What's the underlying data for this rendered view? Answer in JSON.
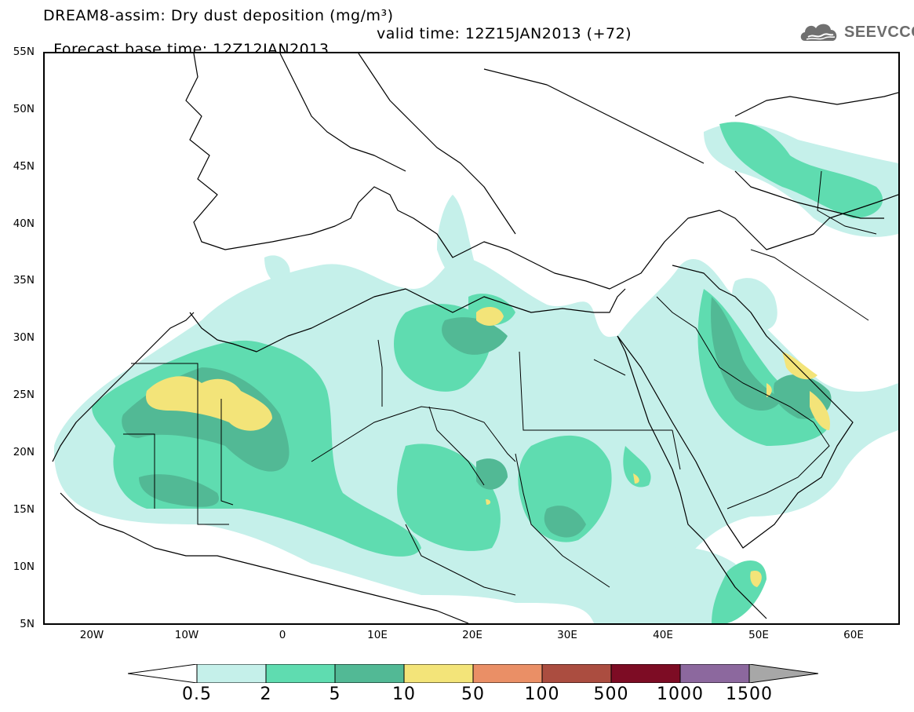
{
  "title_line1": "DREAM8-assim: Dry dust deposition (mg/m³)",
  "title_base": "Forecast base time: 12Z12JAN2013",
  "title_valid": "valid time: 12Z15JAN2013 (+72)",
  "logo_text": "SEEVCCC",
  "lat_labels": [
    "55N",
    "50N",
    "45N",
    "40N",
    "35N",
    "30N",
    "25N",
    "20N",
    "15N",
    "10N",
    "5N"
  ],
  "lon_labels": [
    "20W",
    "10W",
    "0",
    "10E",
    "20E",
    "30E",
    "40E",
    "50E",
    "60E"
  ],
  "colorbar": {
    "labels": [
      "0.5",
      "2",
      "5",
      "10",
      "50",
      "100",
      "500",
      "1000",
      "1500"
    ],
    "colors": [
      "#c5f0ea",
      "#5fdcb0",
      "#52b995",
      "#f3e479",
      "#ea8f66",
      "#ab4d40",
      "#7d0c24",
      "#8c689e"
    ],
    "under_color": "#ffffff",
    "over_color": "#a7a7a7"
  },
  "map": {
    "projection": "lat-lon",
    "lon_range": [
      -25,
      65
    ],
    "lat_range": [
      5,
      55
    ]
  }
}
